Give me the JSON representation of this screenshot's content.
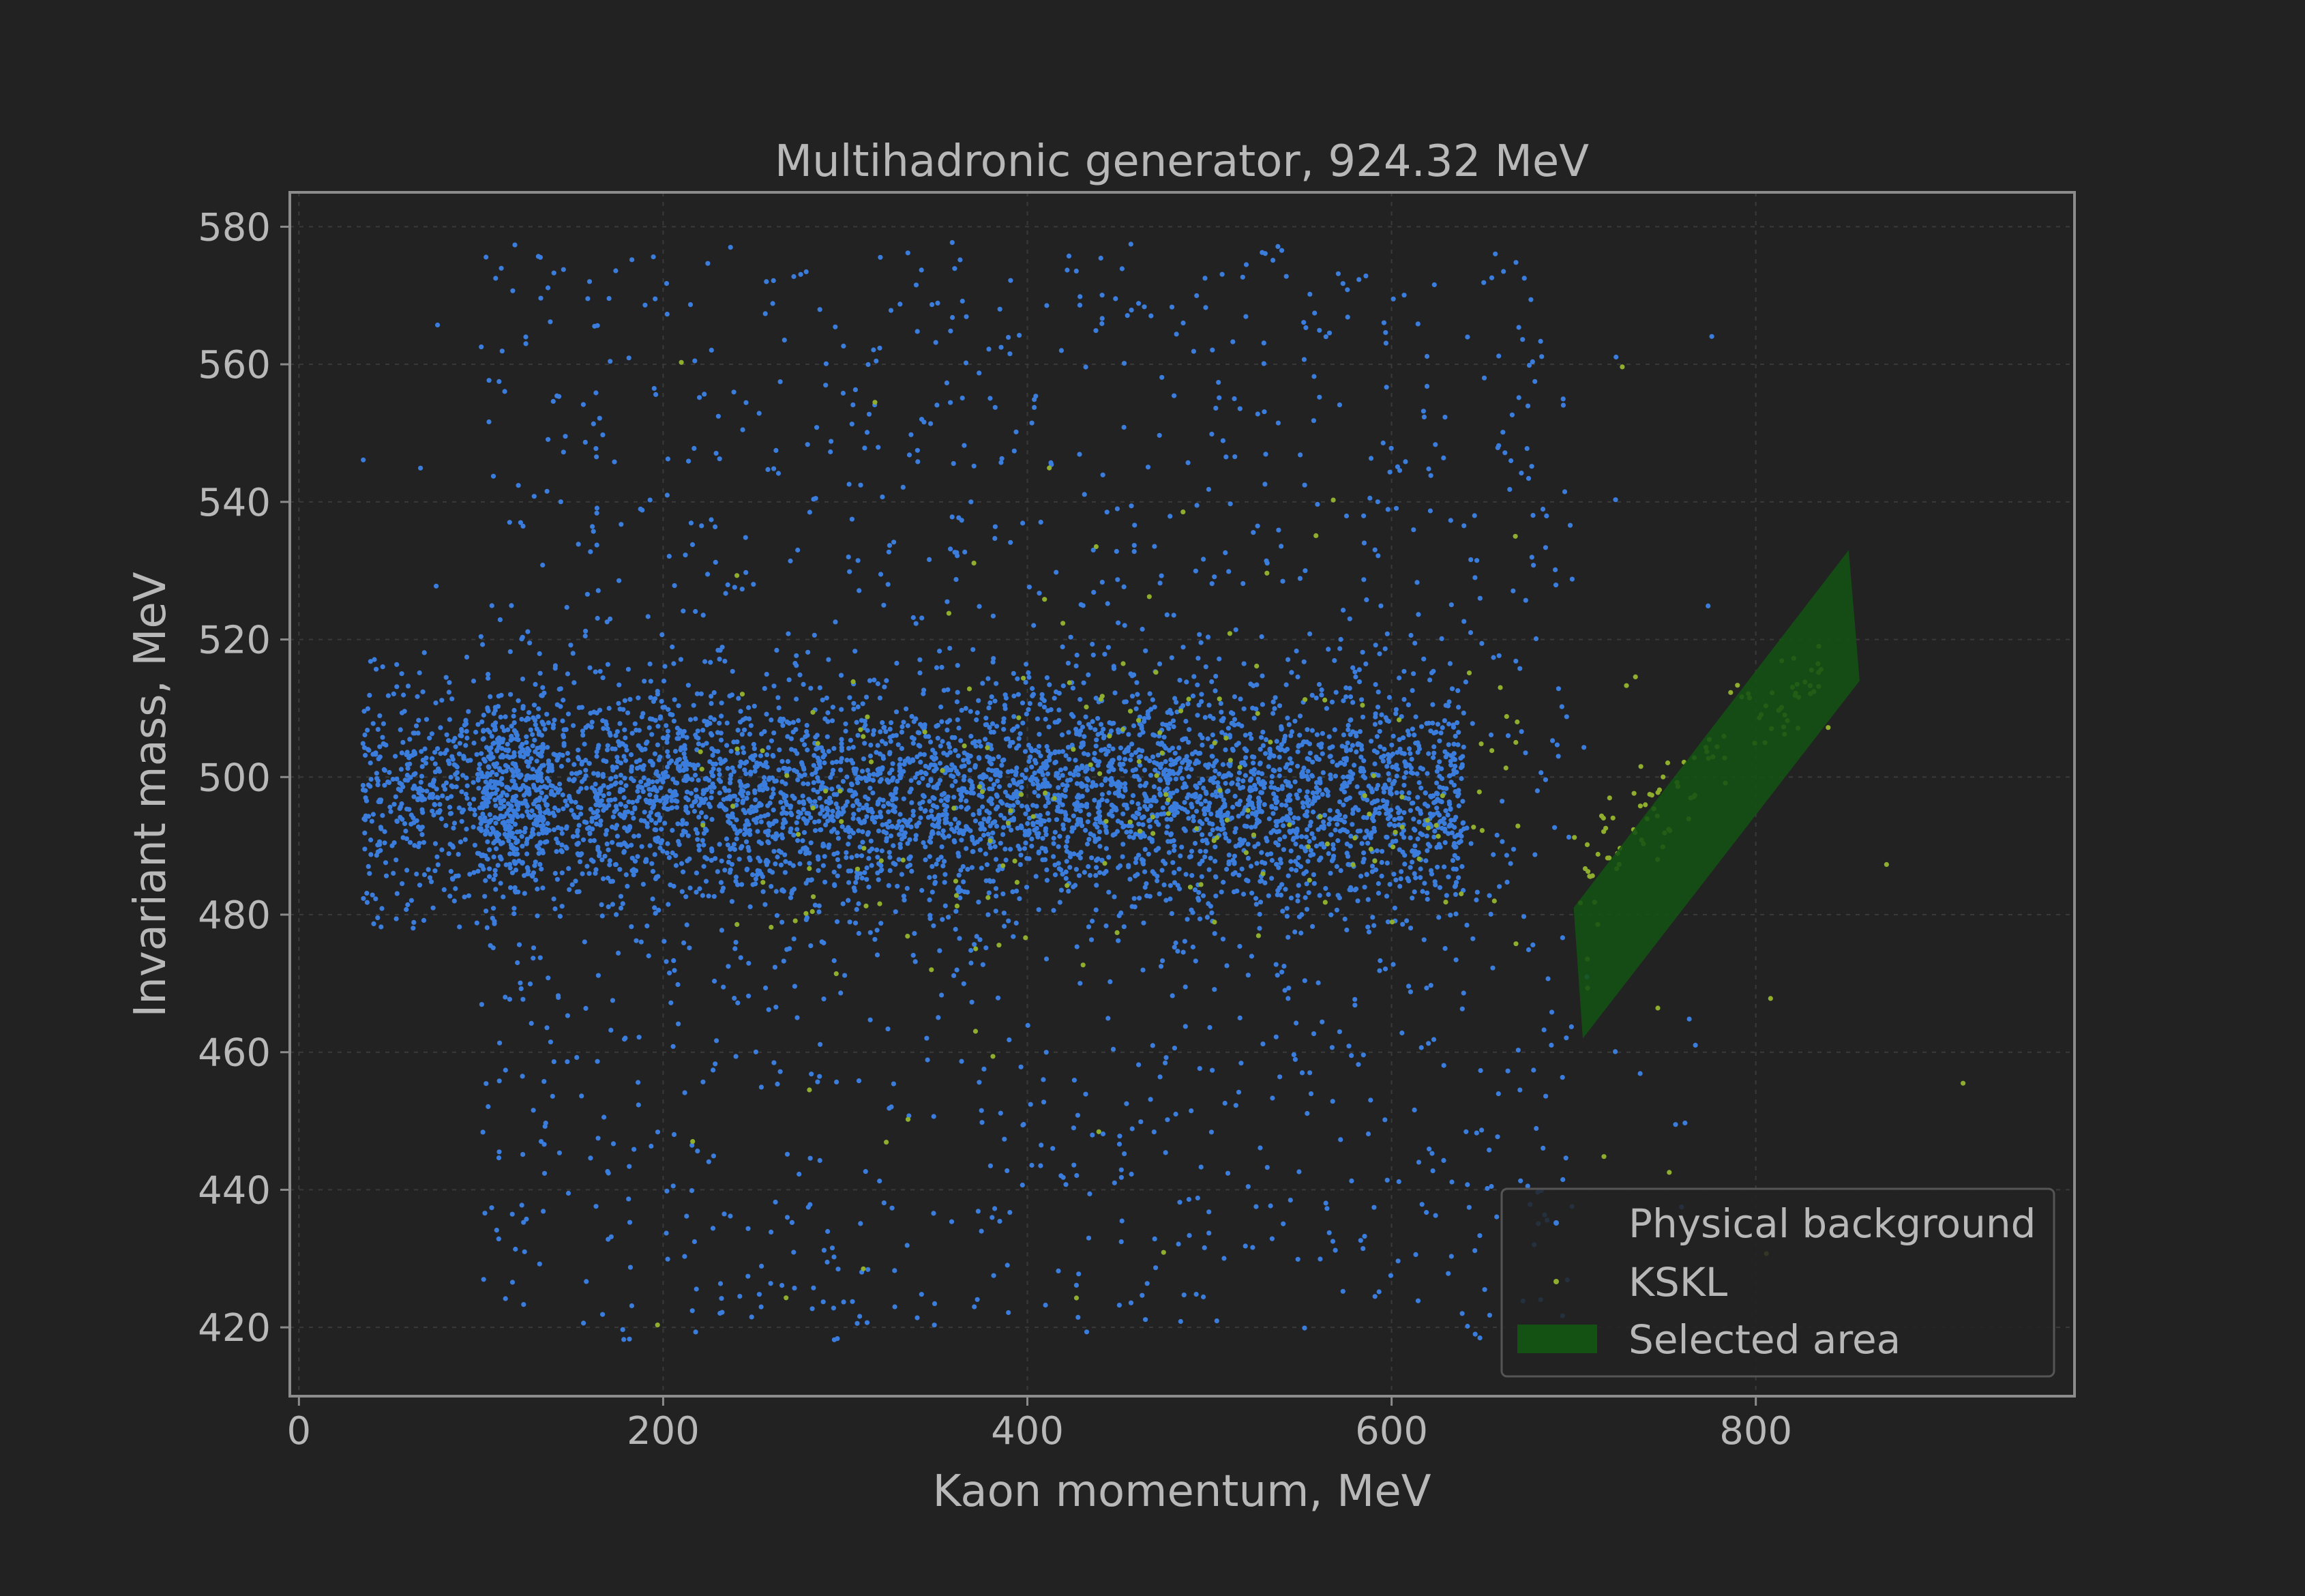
{
  "chart_data": {
    "type": "scatter",
    "title": "Multihadronic generator, 924.32 MeV",
    "xlabel": "Kaon momentum, MeV",
    "ylabel": "Invariant mass, MeV",
    "xlim": [
      -5,
      975
    ],
    "ylim": [
      410,
      585
    ],
    "xticks": [
      0,
      200,
      400,
      600,
      800
    ],
    "yticks": [
      420,
      440,
      460,
      480,
      500,
      520,
      540,
      560,
      580
    ],
    "grid": true,
    "legend_position": "bottom-right",
    "colors": {
      "background": "#222222",
      "axes_frame": "#8c8c8c",
      "text": "#b8b8b8",
      "grid": "#3a3a3a",
      "physical_background": "#3b7ddd",
      "kskl": "#8fae2e",
      "selected_area": "#135213"
    },
    "series": [
      {
        "name": "Physical background",
        "marker": "dot",
        "color": "#3b7ddd",
        "approx_count": 6000,
        "distribution": {
          "x_range": [
            35,
            780
          ],
          "core_x_range": [
            100,
            640
          ],
          "core_y_center": 497,
          "core_y_sigma": 8,
          "y_range": [
            418,
            578
          ]
        }
      },
      {
        "name": "KSKL",
        "marker": "dot",
        "color": "#8fae2e",
        "approx_count": 300,
        "distribution": {
          "x_range": [
            170,
            930
          ],
          "y_range": [
            420,
            562
          ],
          "band_x_range": [
            700,
            840
          ],
          "band_relation": "y = 485 + 0.23*(x-700)"
        }
      }
    ],
    "selected_area": {
      "name": "Selected area",
      "color": "#135213",
      "polygon": [
        [
          700,
          481
        ],
        [
          705,
          462
        ],
        [
          857,
          514
        ],
        [
          851,
          533
        ]
      ]
    },
    "legend": [
      "Physical background",
      "KSKL",
      "Selected area"
    ]
  }
}
